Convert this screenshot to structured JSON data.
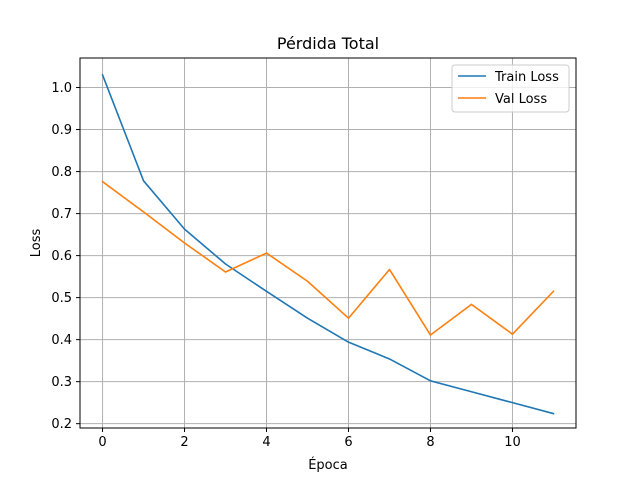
{
  "chart_data": {
    "type": "line",
    "title": "Pérdida Total",
    "xlabel": "Época",
    "ylabel": "Loss",
    "xlim": [
      -0.55,
      11.55
    ],
    "ylim": [
      0.1897,
      1.0703
    ],
    "x_ticks": [
      0,
      2,
      4,
      6,
      8,
      10
    ],
    "y_ticks": [
      0.2,
      0.3,
      0.4,
      0.5,
      0.6,
      0.7,
      0.8,
      0.9,
      1.0
    ],
    "x_tick_labels": [
      "0",
      "2",
      "4",
      "6",
      "8",
      "10"
    ],
    "y_tick_labels": [
      "0.2",
      "0.3",
      "0.4",
      "0.5",
      "0.6",
      "0.7",
      "0.8",
      "0.9",
      "1.0"
    ],
    "grid": true,
    "legend_position": "top-right",
    "x": [
      0,
      1,
      2,
      3,
      4,
      5,
      6,
      7,
      8,
      9,
      10,
      11
    ],
    "series": [
      {
        "name": "Train Loss",
        "color": "#1f77b4",
        "values": [
          1.03,
          0.778,
          0.663,
          0.58,
          0.515,
          0.451,
          0.394,
          0.354,
          0.302,
          0.276,
          0.25,
          0.224
        ]
      },
      {
        "name": "Val Loss",
        "color": "#ff7f0e",
        "values": [
          0.776,
          0.704,
          0.63,
          0.561,
          0.606,
          0.539,
          0.451,
          0.567,
          0.411,
          0.484,
          0.413,
          0.515
        ]
      }
    ]
  }
}
